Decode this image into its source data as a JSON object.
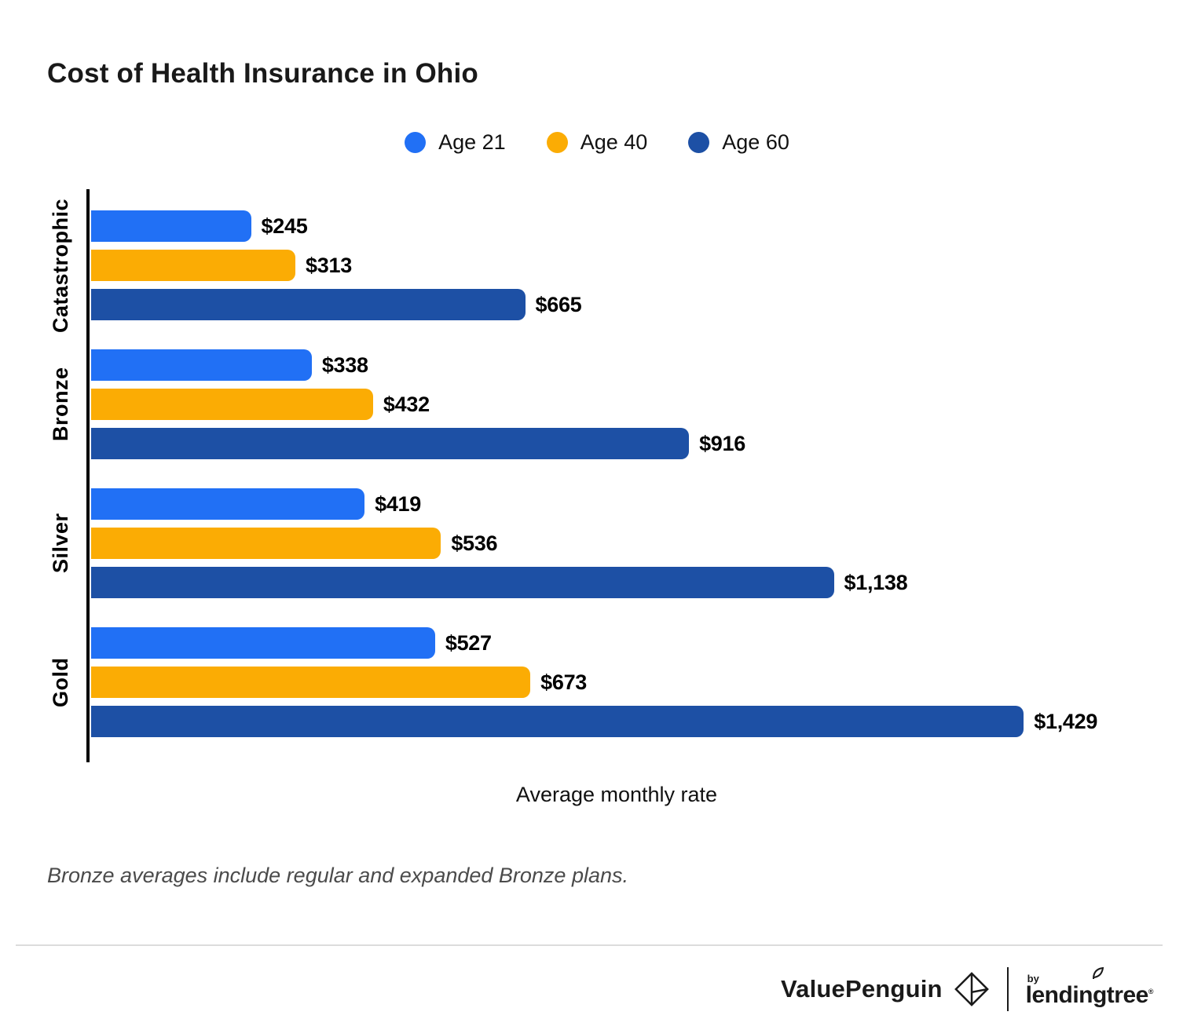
{
  "title": "Cost of Health Insurance in Ohio",
  "legend": [
    {
      "label": "Age 21",
      "color": "#2170F5"
    },
    {
      "label": "Age 40",
      "color": "#FBAC04"
    },
    {
      "label": "Age 60",
      "color": "#1D50A5"
    }
  ],
  "chart_data": {
    "type": "bar",
    "orientation": "horizontal",
    "title": "Cost of Health Insurance in Ohio",
    "xlabel": "Average monthly rate",
    "ylabel": "",
    "grid": false,
    "legend_position": "top-center",
    "axis_color": "#000000",
    "scale_max_dollars": 1620,
    "categories": [
      "Catastrophic",
      "Bronze",
      "Silver",
      "Gold"
    ],
    "series": [
      {
        "name": "Age 21",
        "color": "#2170F5",
        "values": [
          245,
          338,
          419,
          527
        ]
      },
      {
        "name": "Age 40",
        "color": "#FBAC04",
        "values": [
          313,
          432,
          536,
          673
        ]
      },
      {
        "name": "Age 60",
        "color": "#1D50A5",
        "values": [
          665,
          916,
          1138,
          1429
        ]
      }
    ],
    "value_labels": [
      [
        "$245",
        "$313",
        "$665"
      ],
      [
        "$338",
        "$432",
        "$916"
      ],
      [
        "$419",
        "$536",
        "$1,138"
      ],
      [
        "$527",
        "$673",
        "$1,429"
      ]
    ]
  },
  "footnote": "Bronze averages include regular and expanded Bronze plans.",
  "footer": {
    "brand": "ValuePenguin",
    "by": "by",
    "partner": "lendingtree",
    "partner_mark": "®"
  }
}
